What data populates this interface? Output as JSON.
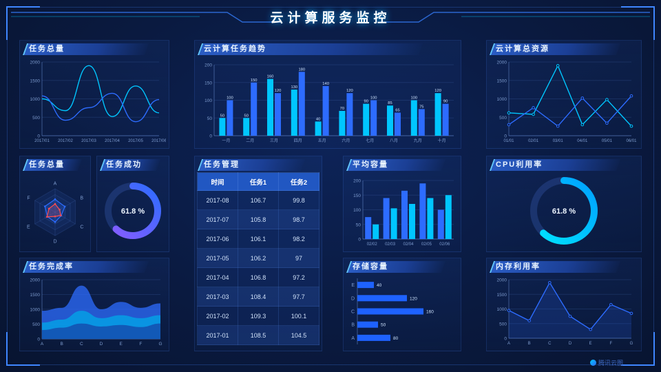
{
  "header": {
    "title": "云计算服务监控"
  },
  "footer": {
    "brand": "腾讯云图"
  },
  "colors": {
    "cyan": "#00c6ff",
    "blue": "#2d6cff",
    "purple": "#8a5cff",
    "red": "#ff4d4f",
    "header_gradient": "#2a5cc4"
  },
  "chart_data": [
    {
      "id": "task-total-line",
      "title": "任务总量",
      "type": "line",
      "x": [
        "2017/01",
        "2017/02",
        "2017/03",
        "2017/04",
        "2017/05",
        "2017/06"
      ],
      "ylim": [
        0,
        2000
      ],
      "yticks": [
        0,
        500,
        1000,
        1500,
        2000
      ],
      "series": [
        {
          "name": "series-1",
          "color": "#00c6ff",
          "smooth": true,
          "values": [
            1000,
            680,
            1900,
            520,
            1350,
            620
          ]
        },
        {
          "name": "series-2",
          "color": "#2d6cff",
          "smooth": true,
          "values": [
            1080,
            420,
            760,
            1150,
            380,
            980
          ]
        }
      ]
    },
    {
      "id": "cloud-task-trend",
      "title": "云计算任务趋势",
      "type": "bar",
      "show_labels": true,
      "categories": [
        "一月",
        "二月",
        "三月",
        "四月",
        "五月",
        "六月",
        "七月",
        "八月",
        "九月",
        "十月"
      ],
      "ylim": [
        0,
        200
      ],
      "yticks": [
        0,
        50,
        100,
        150,
        200
      ],
      "series": [
        {
          "name": "series-1",
          "color": "#00c6ff",
          "values": [
            50,
            50,
            160,
            130,
            40,
            70,
            90,
            85,
            100,
            120
          ]
        },
        {
          "name": "series-2",
          "color": "#2d6cff",
          "values": [
            100,
            150,
            120,
            180,
            140,
            120,
            100,
            65,
            75,
            90
          ]
        }
      ]
    },
    {
      "id": "cloud-resource-total",
      "title": "云计算总资源",
      "type": "line",
      "x": [
        "01/01",
        "02/01",
        "03/01",
        "04/01",
        "05/01",
        "06/01"
      ],
      "ylim": [
        0,
        2000
      ],
      "yticks": [
        0,
        500,
        1000,
        1500,
        2000
      ],
      "series": [
        {
          "name": "series-1",
          "color": "#00c6ff",
          "markers": true,
          "values": [
            620,
            580,
            1900,
            300,
            980,
            260
          ]
        },
        {
          "name": "series-2",
          "color": "#2d6cff",
          "markers": true,
          "values": [
            300,
            760,
            260,
            1020,
            340,
            1080
          ]
        }
      ]
    },
    {
      "id": "task-total-radar",
      "title": "任务总量",
      "type": "radar",
      "max": 100,
      "indicators": [
        "A",
        "B",
        "C",
        "D",
        "E",
        "F"
      ],
      "series": [
        {
          "name": "series-1",
          "color": "#2d6cff",
          "values": [
            55,
            48,
            30,
            42,
            38,
            50
          ]
        },
        {
          "name": "series-2",
          "color": "#ff4d4f",
          "values": [
            35,
            22,
            28,
            18,
            40,
            30
          ]
        }
      ]
    },
    {
      "id": "task-success-gauge",
      "title": "任务成功",
      "type": "donut",
      "percent": 61.8,
      "label": "61.8 %",
      "colors": [
        "#8a5cff",
        "#2d6cff"
      ]
    },
    {
      "id": "task-management-table",
      "title": "任务管理",
      "type": "table",
      "columns": [
        "时间",
        "任务1",
        "任务2"
      ],
      "rows": [
        [
          "2017-08",
          "106.7",
          "99.8"
        ],
        [
          "2017-07",
          "105.8",
          "98.7"
        ],
        [
          "2017-06",
          "106.1",
          "98.2"
        ],
        [
          "2017-05",
          "106.2",
          "97"
        ],
        [
          "2017-04",
          "106.8",
          "97.2"
        ],
        [
          "2017-03",
          "108.4",
          "97.7"
        ],
        [
          "2017-02",
          "109.3",
          "100.1"
        ],
        [
          "2017-01",
          "108.5",
          "104.5"
        ]
      ]
    },
    {
      "id": "avg-capacity-bar",
      "title": "平均容量",
      "type": "bar",
      "show_labels": false,
      "categories": [
        "02/02",
        "02/03",
        "02/04",
        "02/05",
        "02/06"
      ],
      "ylim": [
        0,
        200
      ],
      "yticks": [
        0,
        50,
        100,
        150,
        200
      ],
      "series": [
        {
          "name": "series-1",
          "color": "#2d6cff",
          "values": [
            75,
            140,
            165,
            190,
            100
          ]
        },
        {
          "name": "series-2",
          "color": "#00c6ff",
          "values": [
            50,
            105,
            120,
            140,
            150
          ]
        }
      ]
    },
    {
      "id": "cpu-usage-gauge",
      "title": "CPU利用率",
      "type": "donut",
      "percent": 61.8,
      "label": "61.8 %",
      "colors": [
        "#00e4ff",
        "#00a0ff"
      ]
    },
    {
      "id": "task-completion-area",
      "title": "任务完成率",
      "type": "area",
      "x": [
        "A",
        "B",
        "C",
        "D",
        "E",
        "F",
        "G"
      ],
      "ylim": [
        0,
        2000
      ],
      "yticks": [
        0,
        500,
        1000,
        1500,
        2000
      ],
      "series": [
        {
          "name": "layer-1",
          "color": "#2d6cff",
          "values": [
            950,
            1050,
            1800,
            1000,
            1250,
            1050,
            1200
          ]
        },
        {
          "name": "layer-2",
          "color": "#00a8e8",
          "values": [
            550,
            650,
            950,
            700,
            800,
            700,
            800
          ]
        },
        {
          "name": "layer-3",
          "color": "#1646a8",
          "values": [
            300,
            380,
            520,
            420,
            470,
            400,
            520
          ]
        }
      ]
    },
    {
      "id": "storage-capacity-hbar",
      "title": "存储容量",
      "type": "hbar",
      "color": "#1e62ff",
      "xlim": [
        0,
        200
      ],
      "categories": [
        "A",
        "B",
        "C",
        "D",
        "E"
      ],
      "values": [
        80,
        50,
        160,
        120,
        40
      ]
    },
    {
      "id": "memory-usage-line",
      "title": "内存利用率",
      "type": "line",
      "x": [
        "A",
        "B",
        "C",
        "D",
        "E",
        "F",
        "G"
      ],
      "ylim": [
        0,
        2000
      ],
      "yticks": [
        0,
        500,
        1000,
        1500,
        2000
      ],
      "series": [
        {
          "name": "series-1",
          "color": "#2d6cff",
          "markers": true,
          "fill": true,
          "values": [
            950,
            600,
            1900,
            750,
            300,
            1150,
            850
          ]
        }
      ]
    }
  ]
}
